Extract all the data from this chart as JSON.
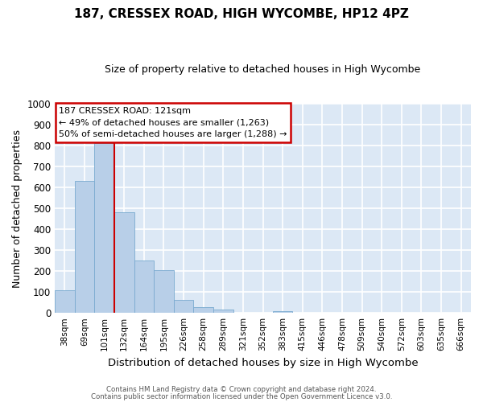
{
  "title": "187, CRESSEX ROAD, HIGH WYCOMBE, HP12 4PZ",
  "subtitle": "Size of property relative to detached houses in High Wycombe",
  "xlabel": "Distribution of detached houses by size in High Wycombe",
  "ylabel": "Number of detached properties",
  "bar_labels": [
    "38sqm",
    "69sqm",
    "101sqm",
    "132sqm",
    "164sqm",
    "195sqm",
    "226sqm",
    "258sqm",
    "289sqm",
    "321sqm",
    "352sqm",
    "383sqm",
    "415sqm",
    "446sqm",
    "478sqm",
    "509sqm",
    "540sqm",
    "572sqm",
    "603sqm",
    "635sqm",
    "666sqm"
  ],
  "bar_values": [
    110,
    630,
    810,
    480,
    250,
    205,
    62,
    28,
    15,
    0,
    0,
    10,
    0,
    0,
    0,
    0,
    0,
    0,
    0,
    0,
    0
  ],
  "bar_color": "#b8cfe8",
  "bar_edge_color": "#7aaad0",
  "ylim": [
    0,
    1000
  ],
  "yticks": [
    0,
    100,
    200,
    300,
    400,
    500,
    600,
    700,
    800,
    900,
    1000
  ],
  "background_color": "#dce8f5",
  "grid_color": "#ffffff",
  "vline_x": 3.0,
  "vline_color": "#cc0000",
  "annotation_box_text": "187 CRESSEX ROAD: 121sqm\n← 49% of detached houses are smaller (1,263)\n50% of semi-detached houses are larger (1,288) →",
  "footer_line1": "Contains HM Land Registry data © Crown copyright and database right 2024.",
  "footer_line2": "Contains public sector information licensed under the Open Government Licence v3.0."
}
